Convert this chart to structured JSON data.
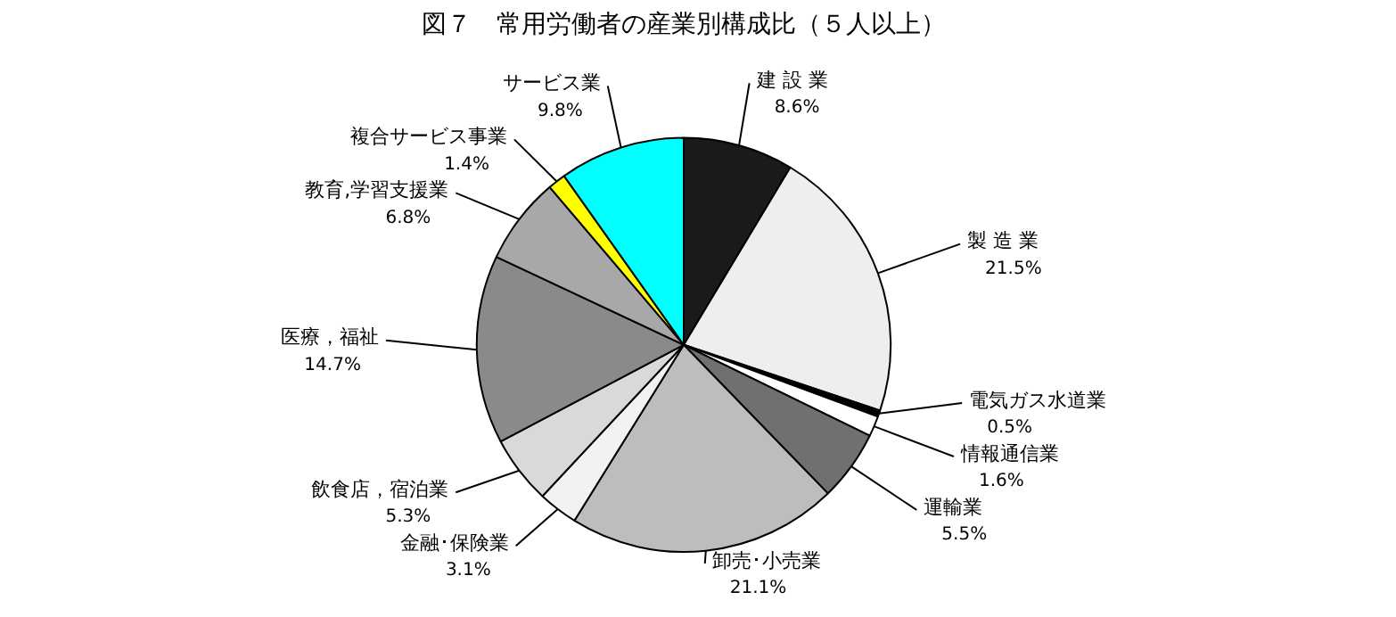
{
  "chart_data": {
    "type": "pie",
    "title": "図７　常用労働者の産業別構成比（５人以上）",
    "categories": [
      "建 設 業",
      "製 造 業",
      "電気ガス水道業",
      "情報通信業",
      "運輸業",
      "卸売･小売業",
      "金融･保険業",
      "飲食店，宿泊業",
      "医療，福祉",
      "教育,学習支援業",
      "複合サービス事業",
      "サービス業"
    ],
    "values": [
      8.6,
      21.5,
      0.5,
      1.6,
      5.5,
      21.1,
      3.1,
      5.3,
      14.7,
      6.8,
      1.4,
      9.8
    ],
    "value_labels": [
      "8.6%",
      "21.5%",
      "0.5%",
      "1.6%",
      "5.5%",
      "21.1%",
      "3.1%",
      "5.3%",
      "14.7%",
      "6.8%",
      "1.4%",
      "9.8%"
    ],
    "colors": [
      "#1a1a1a",
      "#eeeeee",
      "#000000",
      "#ffffff",
      "#707070",
      "#bdbdbd",
      "#f2f2f2",
      "#d9d9d9",
      "#8a8a8a",
      "#a8a8a8",
      "#ffff00",
      "#00ffff"
    ]
  }
}
